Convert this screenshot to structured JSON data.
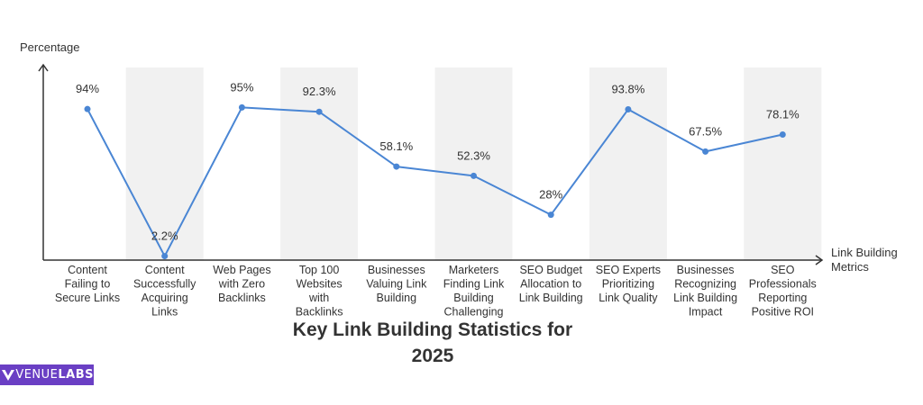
{
  "brand": {
    "prefix": "VENUE",
    "suffix": "LABS"
  },
  "chart_data": {
    "type": "line",
    "title": "Key Link Building Statistics for 2025",
    "ylabel": "Percentage",
    "xlabel": "Link Building Metrics",
    "ylim": [
      0,
      100
    ],
    "categories": [
      "Content Failing to Secure Links",
      "Content Successfully Acquiring Links",
      "Web Pages with Zero Backlinks",
      "Top 100 Websites with Backlinks",
      "Businesses Valuing Link Building",
      "Marketers Finding Link Building Challenging",
      "SEO Budget Allocation to Link Building",
      "SEO Experts Prioritizing Link Quality",
      "Businesses Recognizing Link Building Impact",
      "SEO Professionals Reporting Positive ROI"
    ],
    "category_lines": [
      [
        "Content",
        "Failing to",
        "Secure Links"
      ],
      [
        "Content",
        "Successfully",
        "Acquiring",
        "Links"
      ],
      [
        "Web Pages",
        "with Zero",
        "Backlinks"
      ],
      [
        "Top 100",
        "Websites",
        "with",
        "Backlinks"
      ],
      [
        "Businesses",
        "Valuing Link",
        "Building"
      ],
      [
        "Marketers",
        "Finding Link",
        "Building",
        "Challenging"
      ],
      [
        "SEO Budget",
        "Allocation to",
        "Link Building"
      ],
      [
        "SEO Experts",
        "Prioritizing",
        "Link Quality"
      ],
      [
        "Businesses",
        "Recognizing",
        "Link Building",
        "Impact"
      ],
      [
        "SEO",
        "Professionals",
        "Reporting",
        "Positive ROI"
      ]
    ],
    "values": [
      94,
      2.2,
      95,
      92.3,
      58.1,
      52.3,
      28,
      93.8,
      67.5,
      78.1
    ],
    "value_labels": [
      "94%",
      "2.2%",
      "95%",
      "92.3%",
      "58.1%",
      "52.3%",
      "28%",
      "93.8%",
      "67.5%",
      "78.1%"
    ],
    "colors": {
      "line": "#4a86d4",
      "band": "#f1f1f1",
      "axis": "#333333",
      "text": "#333333"
    },
    "grid": false,
    "legend": "none"
  }
}
